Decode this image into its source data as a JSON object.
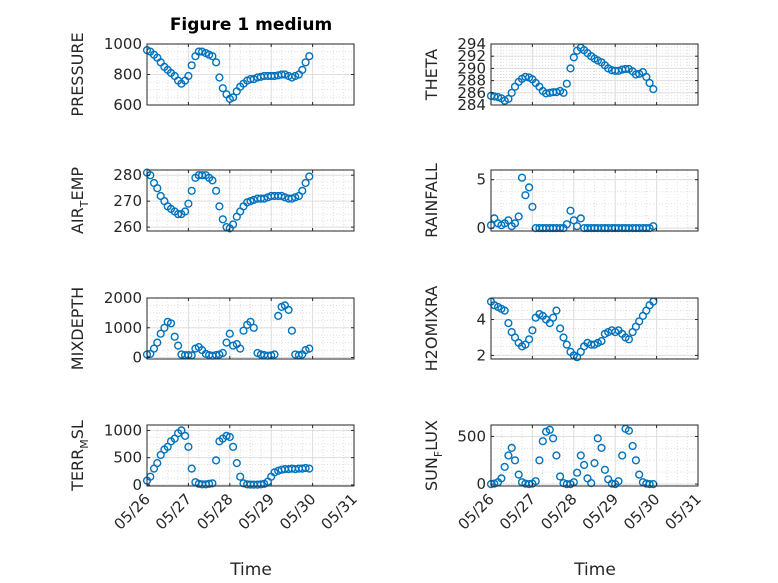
{
  "figure": {
    "title": "Figure 1 medium",
    "xlabel": "Time"
  },
  "chart_data": [
    {
      "type": "scatter",
      "ylabel": "PRESSURE",
      "ylabel_sub": "",
      "ylabel_tail": "",
      "ylim": [
        600,
        1000
      ],
      "yticks": [
        600,
        800,
        1000
      ],
      "x": [
        0.0,
        0.08,
        0.17,
        0.25,
        0.33,
        0.42,
        0.5,
        0.58,
        0.67,
        0.75,
        0.83,
        0.92,
        1.0,
        1.08,
        1.17,
        1.25,
        1.33,
        1.42,
        1.5,
        1.58,
        1.67,
        1.75,
        1.83,
        1.92,
        2.0,
        2.08,
        2.17,
        2.25,
        2.33,
        2.42,
        2.5,
        2.58,
        2.67,
        2.75,
        2.83,
        2.92,
        3.0,
        3.08,
        3.17,
        3.25,
        3.33,
        3.42,
        3.5,
        3.58,
        3.67,
        3.75,
        3.83,
        3.92
      ],
      "y": [
        960,
        950,
        930,
        910,
        880,
        850,
        830,
        810,
        790,
        760,
        740,
        760,
        790,
        860,
        920,
        950,
        950,
        940,
        930,
        920,
        880,
        780,
        710,
        670,
        640,
        650,
        690,
        720,
        740,
        760,
        770,
        770,
        780,
        785,
        790,
        790,
        790,
        790,
        795,
        800,
        800,
        790,
        780,
        790,
        800,
        830,
        880,
        920
      ]
    },
    {
      "type": "scatter",
      "ylabel": "THETA",
      "ylabel_sub": "",
      "ylabel_tail": "",
      "ylim": [
        284,
        294
      ],
      "yticks": [
        284,
        286,
        288,
        290,
        292,
        294
      ],
      "x": [
        0.0,
        0.08,
        0.17,
        0.25,
        0.33,
        0.42,
        0.5,
        0.58,
        0.67,
        0.75,
        0.83,
        0.92,
        1.0,
        1.08,
        1.17,
        1.25,
        1.33,
        1.42,
        1.5,
        1.58,
        1.67,
        1.75,
        1.83,
        1.92,
        2.0,
        2.08,
        2.17,
        2.25,
        2.33,
        2.42,
        2.5,
        2.58,
        2.67,
        2.75,
        2.83,
        2.92,
        3.0,
        3.08,
        3.17,
        3.25,
        3.33,
        3.42,
        3.5,
        3.58,
        3.67,
        3.75,
        3.83,
        3.92
      ],
      "y": [
        285.5,
        285.4,
        285.3,
        285.1,
        284.7,
        285.0,
        286.0,
        287.0,
        287.8,
        288.3,
        288.6,
        288.5,
        288.2,
        287.6,
        287.0,
        286.3,
        285.9,
        286.0,
        286.1,
        286.1,
        286.3,
        286.0,
        287.5,
        290.0,
        291.8,
        292.9,
        293.4,
        293.0,
        292.5,
        292.0,
        291.6,
        291.3,
        291.0,
        290.5,
        290.0,
        289.7,
        289.6,
        289.6,
        289.8,
        289.9,
        289.9,
        289.5,
        289.0,
        289.1,
        289.4,
        288.6,
        287.6,
        286.6
      ]
    },
    {
      "type": "scatter",
      "ylabel": "AIR",
      "ylabel_sub": "T",
      "ylabel_tail": "EMP",
      "ylim": [
        258.5,
        282
      ],
      "yticks": [
        260,
        270,
        280
      ],
      "x": [
        0.0,
        0.08,
        0.17,
        0.25,
        0.33,
        0.42,
        0.5,
        0.58,
        0.67,
        0.75,
        0.83,
        0.92,
        1.0,
        1.08,
        1.17,
        1.25,
        1.33,
        1.42,
        1.5,
        1.58,
        1.67,
        1.75,
        1.83,
        1.92,
        2.0,
        2.08,
        2.17,
        2.25,
        2.33,
        2.42,
        2.5,
        2.58,
        2.67,
        2.75,
        2.83,
        2.92,
        3.0,
        3.08,
        3.17,
        3.25,
        3.33,
        3.42,
        3.5,
        3.58,
        3.67,
        3.75,
        3.83,
        3.92
      ],
      "y": [
        281,
        280,
        277,
        275,
        272,
        270,
        268,
        267,
        266,
        265,
        265,
        266,
        269,
        274,
        279,
        280,
        280,
        280,
        279,
        278,
        274,
        268,
        263,
        260,
        259.5,
        261,
        264,
        266,
        268,
        269.5,
        270,
        270.5,
        271,
        271,
        271,
        271.5,
        272,
        272,
        272,
        272,
        271.5,
        271,
        271,
        271.5,
        272,
        274,
        277,
        279.5
      ]
    },
    {
      "type": "scatter",
      "ylabel": "RAINFALL",
      "ylabel_sub": "",
      "ylabel_tail": "",
      "ylim": [
        -0.3,
        6
      ],
      "yticks": [
        0,
        5
      ],
      "x": [
        0.0,
        0.08,
        0.17,
        0.25,
        0.33,
        0.42,
        0.5,
        0.58,
        0.67,
        0.75,
        0.83,
        0.92,
        1.0,
        1.08,
        1.17,
        1.25,
        1.33,
        1.42,
        1.5,
        1.58,
        1.67,
        1.75,
        1.83,
        1.92,
        2.0,
        2.08,
        2.17,
        2.25,
        2.33,
        2.42,
        2.5,
        2.58,
        2.67,
        2.75,
        2.83,
        2.92,
        3.0,
        3.08,
        3.17,
        3.25,
        3.33,
        3.42,
        3.5,
        3.58,
        3.67,
        3.75,
        3.83,
        3.92
      ],
      "y": [
        0.3,
        1.0,
        0.5,
        0.3,
        0.5,
        0.8,
        0.2,
        0.5,
        1.2,
        5.2,
        3.4,
        4.2,
        2.2,
        0,
        0,
        0,
        0,
        0,
        0,
        0,
        0,
        0,
        0.4,
        1.8,
        0.8,
        0.2,
        1.0,
        0,
        0,
        0,
        0,
        0,
        0,
        0,
        0,
        0,
        0,
        0,
        0,
        0,
        0,
        0,
        0,
        0,
        0,
        0,
        0,
        0.2
      ]
    },
    {
      "type": "scatter",
      "ylabel": "MIXDEPTH",
      "ylabel_sub": "",
      "ylabel_tail": "",
      "ylim": [
        -50,
        2000
      ],
      "yticks": [
        0,
        1000,
        2000
      ],
      "x": [
        0.0,
        0.08,
        0.17,
        0.25,
        0.33,
        0.42,
        0.5,
        0.58,
        0.67,
        0.75,
        0.83,
        0.92,
        1.0,
        1.08,
        1.17,
        1.25,
        1.33,
        1.42,
        1.5,
        1.58,
        1.67,
        1.75,
        1.83,
        1.92,
        2.0,
        2.08,
        2.17,
        2.25,
        2.33,
        2.42,
        2.5,
        2.58,
        2.67,
        2.75,
        2.83,
        2.92,
        3.0,
        3.08,
        3.17,
        3.25,
        3.33,
        3.42,
        3.5,
        3.58,
        3.67,
        3.75,
        3.83,
        3.92
      ],
      "y": [
        100,
        120,
        300,
        500,
        800,
        1000,
        1200,
        1150,
        700,
        400,
        100,
        80,
        80,
        70,
        300,
        350,
        250,
        120,
        80,
        60,
        80,
        100,
        150,
        500,
        800,
        400,
        450,
        300,
        900,
        1100,
        1200,
        1000,
        150,
        100,
        80,
        60,
        70,
        100,
        1400,
        1700,
        1750,
        1600,
        900,
        100,
        80,
        100,
        250,
        300
      ]
    },
    {
      "type": "scatter",
      "ylabel": "H2OMIXRA",
      "ylabel_sub": "",
      "ylabel_tail": "",
      "ylim": [
        1.8,
        5.2
      ],
      "yticks": [
        2,
        4
      ],
      "x": [
        0.0,
        0.08,
        0.17,
        0.25,
        0.33,
        0.42,
        0.5,
        0.58,
        0.67,
        0.75,
        0.83,
        0.92,
        1.0,
        1.08,
        1.17,
        1.25,
        1.33,
        1.42,
        1.5,
        1.58,
        1.67,
        1.75,
        1.83,
        1.92,
        2.0,
        2.08,
        2.17,
        2.25,
        2.33,
        2.42,
        2.5,
        2.58,
        2.67,
        2.75,
        2.83,
        2.92,
        3.0,
        3.08,
        3.17,
        3.25,
        3.33,
        3.42,
        3.5,
        3.58,
        3.67,
        3.75,
        3.83,
        3.92
      ],
      "y": [
        5.0,
        4.8,
        4.7,
        4.6,
        4.5,
        3.8,
        3.3,
        3.0,
        2.7,
        2.5,
        2.6,
        2.9,
        3.4,
        4.1,
        4.3,
        4.2,
        4.0,
        3.8,
        4.1,
        4.5,
        3.5,
        3.0,
        2.6,
        2.2,
        2.0,
        1.9,
        2.2,
        2.5,
        2.7,
        2.6,
        2.6,
        2.7,
        2.8,
        3.2,
        3.3,
        3.4,
        3.3,
        3.4,
        3.2,
        3.0,
        2.9,
        3.3,
        3.6,
        3.9,
        4.2,
        4.5,
        4.8,
        5.0
      ]
    },
    {
      "type": "scatter",
      "ylabel": "TERR",
      "ylabel_sub": "M",
      "ylabel_tail": "SL",
      "ylim": [
        -20,
        1100
      ],
      "yticks": [
        0,
        500,
        1000
      ],
      "x": [
        0.0,
        0.08,
        0.17,
        0.25,
        0.33,
        0.42,
        0.5,
        0.58,
        0.67,
        0.75,
        0.83,
        0.92,
        1.0,
        1.08,
        1.17,
        1.25,
        1.33,
        1.42,
        1.5,
        1.58,
        1.67,
        1.75,
        1.83,
        1.92,
        2.0,
        2.08,
        2.17,
        2.25,
        2.33,
        2.42,
        2.5,
        2.58,
        2.67,
        2.75,
        2.83,
        2.92,
        3.0,
        3.08,
        3.17,
        3.25,
        3.33,
        3.42,
        3.5,
        3.58,
        3.67,
        3.75,
        3.83,
        3.92
      ],
      "y": [
        80,
        150,
        300,
        400,
        550,
        650,
        700,
        800,
        850,
        950,
        1000,
        900,
        700,
        300,
        50,
        20,
        10,
        10,
        20,
        30,
        450,
        800,
        850,
        900,
        880,
        700,
        400,
        150,
        30,
        10,
        5,
        5,
        5,
        10,
        20,
        60,
        150,
        230,
        260,
        280,
        290,
        290,
        300,
        290,
        300,
        300,
        310,
        300
      ]
    },
    {
      "type": "scatter",
      "ylabel": "SUN",
      "ylabel_sub": "F",
      "ylabel_tail": "LUX",
      "ylim": [
        -20,
        620
      ],
      "yticks": [
        0,
        500
      ],
      "x": [
        0.0,
        0.08,
        0.17,
        0.25,
        0.33,
        0.42,
        0.5,
        0.58,
        0.67,
        0.75,
        0.83,
        0.92,
        1.0,
        1.08,
        1.17,
        1.25,
        1.33,
        1.42,
        1.5,
        1.58,
        1.67,
        1.75,
        1.83,
        1.92,
        2.0,
        2.08,
        2.17,
        2.25,
        2.33,
        2.42,
        2.5,
        2.58,
        2.67,
        2.75,
        2.83,
        2.92,
        3.0,
        3.08,
        3.17,
        3.25,
        3.33,
        3.42,
        3.5,
        3.58,
        3.67,
        3.75,
        3.83,
        3.92
      ],
      "y": [
        0,
        5,
        20,
        60,
        180,
        300,
        380,
        250,
        100,
        20,
        5,
        0,
        5,
        30,
        250,
        450,
        550,
        570,
        480,
        300,
        80,
        10,
        0,
        0,
        20,
        120,
        300,
        200,
        60,
        10,
        220,
        480,
        380,
        150,
        50,
        5,
        0,
        30,
        300,
        580,
        560,
        400,
        250,
        100,
        20,
        5,
        0,
        0
      ]
    }
  ],
  "xaxis": {
    "lim": [
      0,
      5
    ],
    "ticks": [
      0,
      1,
      2,
      3,
      4,
      5
    ],
    "ticklabels": [
      "05/26",
      "05/27",
      "05/28",
      "05/29",
      "05/30",
      "05/31"
    ]
  },
  "colors": {
    "marker": "#0072bd",
    "grid": "#dfdfdf",
    "axes": "#262626"
  }
}
